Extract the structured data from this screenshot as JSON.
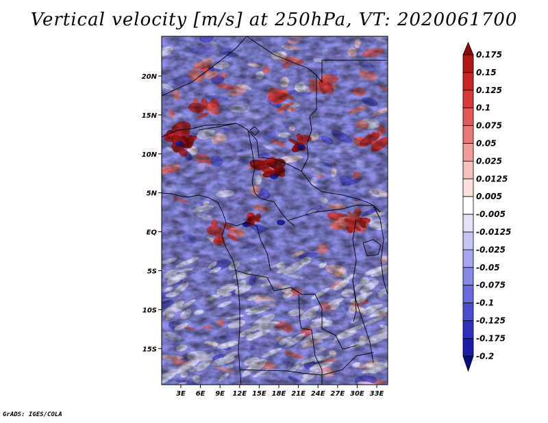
{
  "title": "Vertical velocity [m/s] at 250hPa, VT: 2020061700",
  "credit": "GrADS: IGES/COLA",
  "map": {
    "lat_labels": [
      "20N",
      "15N",
      "10N",
      "5N",
      "EQ",
      "5S",
      "10S",
      "15S"
    ],
    "lon_labels": [
      "3E",
      "6E",
      "9E",
      "12E",
      "15E",
      "18E",
      "21E",
      "24E",
      "27E",
      "30E",
      "33E"
    ]
  },
  "colorbar": {
    "labels": [
      "0.175",
      "0.15",
      "0.125",
      "0.1",
      "0.075",
      "0.05",
      "0.025",
      "0.0125",
      "0.005",
      "-0.005",
      "-0.0125",
      "-0.025",
      "-0.05",
      "-0.075",
      "-0.1",
      "-0.125",
      "-0.175",
      "-0.2"
    ],
    "colors": [
      "#8b0a0a",
      "#b01818",
      "#c72626",
      "#d63a3a",
      "#e05a58",
      "#e87a76",
      "#f09c98",
      "#f6c0bc",
      "#fbe2df",
      "#ffffff",
      "#e2e2fb",
      "#c4c4f5",
      "#a6a6ee",
      "#8888e6",
      "#6a6adc",
      "#4c4cd0",
      "#3030bc",
      "#1c1ca4",
      "#0c0c80"
    ]
  }
}
